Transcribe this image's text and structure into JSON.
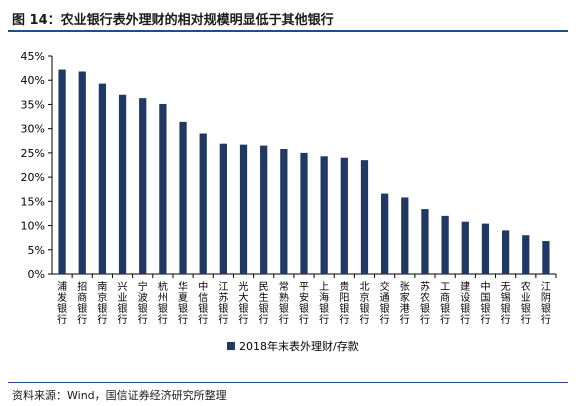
{
  "header": {
    "title": "图 14：农业银行表外理财的相对规模明显低于其他银行"
  },
  "chart_data": {
    "type": "bar",
    "title": "",
    "xlabel": "",
    "ylabel": "",
    "ylim": [
      0,
      45
    ],
    "yticks": [
      "0%",
      "5%",
      "10%",
      "15%",
      "20%",
      "25%",
      "30%",
      "35%",
      "40%",
      "45%"
    ],
    "grid": false,
    "legend_position": "bottom",
    "bar_color": "#1f3864",
    "categories": [
      "浦发银行",
      "招商银行",
      "南京银行",
      "兴业银行",
      "宁波银行",
      "杭州银行",
      "华夏银行",
      "中信银行",
      "江苏银行",
      "光大银行",
      "民生银行",
      "常熟银行",
      "平安银行",
      "上海银行",
      "贵阳银行",
      "北京银行",
      "交通银行",
      "张家港行",
      "苏农银行",
      "工商银行",
      "建设银行",
      "中国银行",
      "无锡银行",
      "农业银行",
      "江阴银行"
    ],
    "series": [
      {
        "name": "2018年末表外理财/存款",
        "values": [
          42.2,
          41.8,
          39.3,
          37.0,
          36.3,
          35.1,
          31.4,
          29.0,
          26.9,
          26.7,
          26.5,
          25.8,
          25.0,
          24.3,
          24.0,
          23.5,
          16.6,
          15.8,
          13.4,
          12.0,
          10.8,
          10.4,
          9.0,
          8.0,
          6.8
        ]
      }
    ]
  },
  "footer": {
    "source": "资料来源：Wind，国信证券经济研究所整理"
  }
}
